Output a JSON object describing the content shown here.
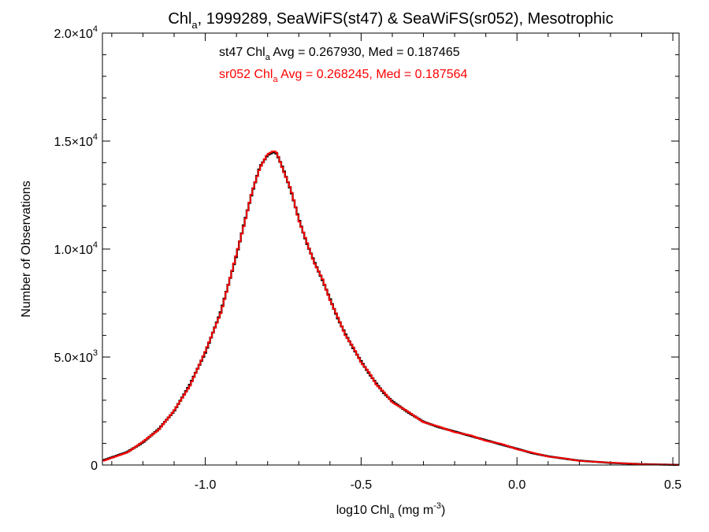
{
  "chart_data": {
    "type": "line",
    "title": "Chl_a, 1999289, SeaWiFS(st47) & SeaWiFS(sr052), Mesotrophic",
    "title_parts": {
      "pre": "Chl",
      "sub": "a",
      "post": ", 1999289, SeaWiFS(st47) & SeaWiFS(sr052), Mesotrophic"
    },
    "xlabel": "log10 Chl_a (mg m^-3)",
    "xlabel_parts": {
      "pre": "log10 Chl",
      "sub": "a",
      "mid": " (mg m",
      "sup": "-3",
      "post": ")"
    },
    "ylabel": "Number of Observations",
    "xlim": [
      -1.33,
      0.52
    ],
    "ylim": [
      0,
      20000
    ],
    "x_ticks": [
      {
        "value": -1.0,
        "label": "-1.0"
      },
      {
        "value": -0.5,
        "label": "-0.5"
      },
      {
        "value": 0.0,
        "label": "0.0"
      },
      {
        "value": 0.5,
        "label": "0.5"
      }
    ],
    "y_ticks": [
      {
        "value": 0,
        "mant": "0",
        "exp": ""
      },
      {
        "value": 5000,
        "mant": "5.0×10",
        "exp": "3"
      },
      {
        "value": 10000,
        "mant": "1.0×10",
        "exp": "4"
      },
      {
        "value": 15000,
        "mant": "1.5×10",
        "exp": "4"
      },
      {
        "value": 20000,
        "mant": "2.0×10",
        "exp": "4"
      }
    ],
    "annotations": [
      {
        "text": "st47 Chl_a Avg = 0.267930, Med = 0.187465",
        "pre": "st47 Chl",
        "sub": "a",
        "post": " Avg = 0.267930, Med = 0.187465",
        "color": "#000000"
      },
      {
        "text": "sr052 Chl_a Avg = 0.268245, Med = 0.187564",
        "pre": "sr052 Chl",
        "sub": "a",
        "post": " Avg = 0.268245, Med = 0.187564",
        "color": "#ff0000"
      }
    ],
    "series": [
      {
        "name": "st47",
        "color": "#000000",
        "x": [
          -1.33,
          -1.25,
          -1.2,
          -1.15,
          -1.1,
          -1.05,
          -1.0,
          -0.95,
          -0.9,
          -0.875,
          -0.85,
          -0.825,
          -0.8,
          -0.78,
          -0.77,
          -0.75,
          -0.725,
          -0.7,
          -0.675,
          -0.65,
          -0.625,
          -0.6,
          -0.575,
          -0.55,
          -0.525,
          -0.5,
          -0.475,
          -0.45,
          -0.425,
          -0.4,
          -0.35,
          -0.3,
          -0.25,
          -0.2,
          -0.15,
          -0.1,
          -0.05,
          0.0,
          0.05,
          0.1,
          0.15,
          0.2,
          0.3,
          0.4,
          0.5,
          0.52
        ],
        "y": [
          200,
          600,
          1050,
          1650,
          2500,
          3700,
          5200,
          7100,
          9700,
          11200,
          12600,
          13800,
          14350,
          14500,
          14400,
          13700,
          12700,
          11400,
          10300,
          9400,
          8600,
          7700,
          6800,
          6050,
          5400,
          4800,
          4250,
          3750,
          3300,
          2950,
          2450,
          2000,
          1750,
          1550,
          1350,
          1150,
          950,
          750,
          550,
          400,
          300,
          200,
          100,
          40,
          10,
          5
        ]
      },
      {
        "name": "sr052",
        "color": "#ff0000",
        "x": [
          -1.33,
          -1.25,
          -1.2,
          -1.15,
          -1.1,
          -1.05,
          -1.0,
          -0.95,
          -0.9,
          -0.875,
          -0.85,
          -0.825,
          -0.8,
          -0.78,
          -0.77,
          -0.75,
          -0.725,
          -0.7,
          -0.675,
          -0.65,
          -0.625,
          -0.6,
          -0.575,
          -0.55,
          -0.525,
          -0.5,
          -0.475,
          -0.45,
          -0.425,
          -0.4,
          -0.35,
          -0.3,
          -0.25,
          -0.2,
          -0.15,
          -0.1,
          -0.05,
          0.0,
          0.05,
          0.1,
          0.15,
          0.2,
          0.3,
          0.4,
          0.5,
          0.52
        ],
        "y": [
          180,
          580,
          1080,
          1620,
          2520,
          3650,
          5250,
          7050,
          9750,
          11150,
          12650,
          13750,
          14400,
          14550,
          14450,
          13650,
          12750,
          11350,
          10350,
          9350,
          8650,
          7650,
          6850,
          6000,
          5450,
          4750,
          4300,
          3700,
          3350,
          2900,
          2480,
          1980,
          1780,
          1520,
          1380,
          1120,
          980,
          730,
          570,
          390,
          310,
          190,
          110,
          35,
          12,
          5
        ]
      }
    ]
  }
}
